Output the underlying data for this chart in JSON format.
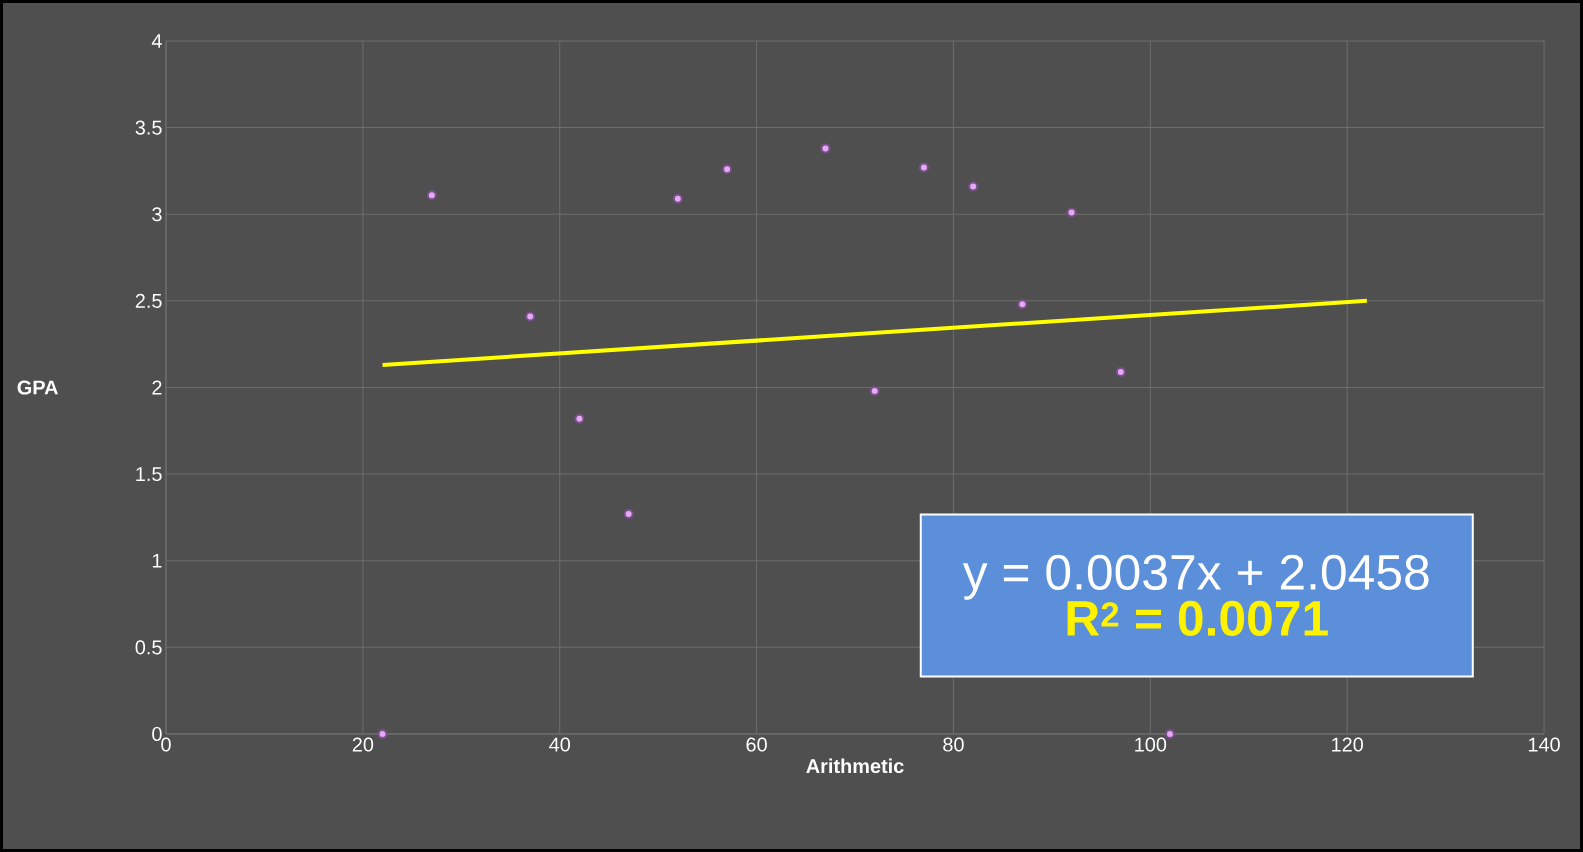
{
  "chart_data": {
    "type": "scatter",
    "xlabel": "Arithmetic",
    "ylabel": "GPA",
    "xlim": [
      0,
      140
    ],
    "xticks": [
      0,
      20,
      40,
      60,
      80,
      100,
      120,
      140
    ],
    "ylim": [
      0,
      4
    ],
    "yticks": [
      0,
      0.5,
      1,
      1.5,
      2,
      2.5,
      3,
      3.5,
      4
    ],
    "grid": true,
    "series": [
      {
        "marker": "circle",
        "color": "#e6a8f0",
        "x": [
          22,
          27,
          37,
          42,
          47,
          52,
          57,
          67,
          72,
          77,
          82,
          87,
          92,
          97,
          102
        ],
        "values": [
          0,
          3.11,
          2.41,
          1.82,
          1.27,
          3.09,
          3.26,
          3.38,
          1.98,
          3.27,
          3.16,
          2.48,
          3.01,
          2.09,
          0
        ]
      },
      {
        "type": "line",
        "marker": "none",
        "color": "#ffff00",
        "x": [
          22,
          122
        ],
        "values": [
          2.13,
          2.5
        ]
      }
    ],
    "annotations": [
      "y = 0.0037x + 2.0458",
      "R$^{2}$ = 0.0071"
    ]
  }
}
